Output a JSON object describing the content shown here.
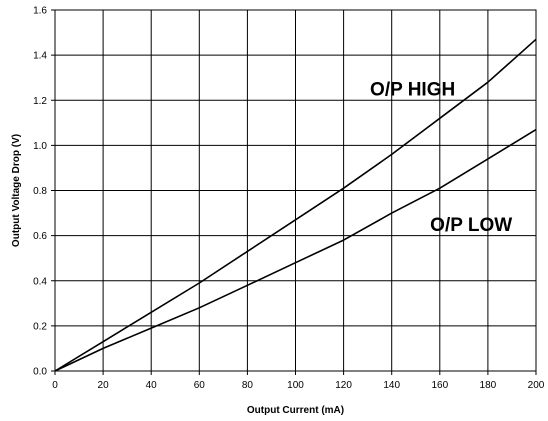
{
  "chart_data": {
    "type": "line",
    "xlabel": "Output Current (mA)",
    "ylabel": "Output Voltage Drop (V)",
    "xlim": [
      0,
      200
    ],
    "ylim": [
      0,
      1.6
    ],
    "x_ticks": [
      "0",
      "20",
      "40",
      "60",
      "80",
      "100",
      "120",
      "140",
      "160",
      "180",
      "200"
    ],
    "y_ticks": [
      "0.0",
      "0.2",
      "0.4",
      "0.6",
      "0.8",
      "1.0",
      "1.2",
      "1.4",
      "1.6"
    ],
    "grid": true,
    "series": [
      {
        "name": "O/P HIGH",
        "x": [
          0,
          20,
          40,
          60,
          80,
          100,
          120,
          140,
          160,
          180,
          200
        ],
        "y": [
          0.0,
          0.13,
          0.26,
          0.39,
          0.53,
          0.67,
          0.81,
          0.96,
          1.12,
          1.28,
          1.47
        ]
      },
      {
        "name": "O/P LOW",
        "x": [
          0,
          20,
          40,
          60,
          80,
          100,
          120,
          140,
          160,
          180,
          200
        ],
        "y": [
          0.0,
          0.1,
          0.19,
          0.28,
          0.38,
          0.48,
          0.58,
          0.7,
          0.81,
          0.94,
          1.07
        ]
      }
    ],
    "annotations": [
      "O/P HIGH",
      "O/P LOW"
    ]
  }
}
